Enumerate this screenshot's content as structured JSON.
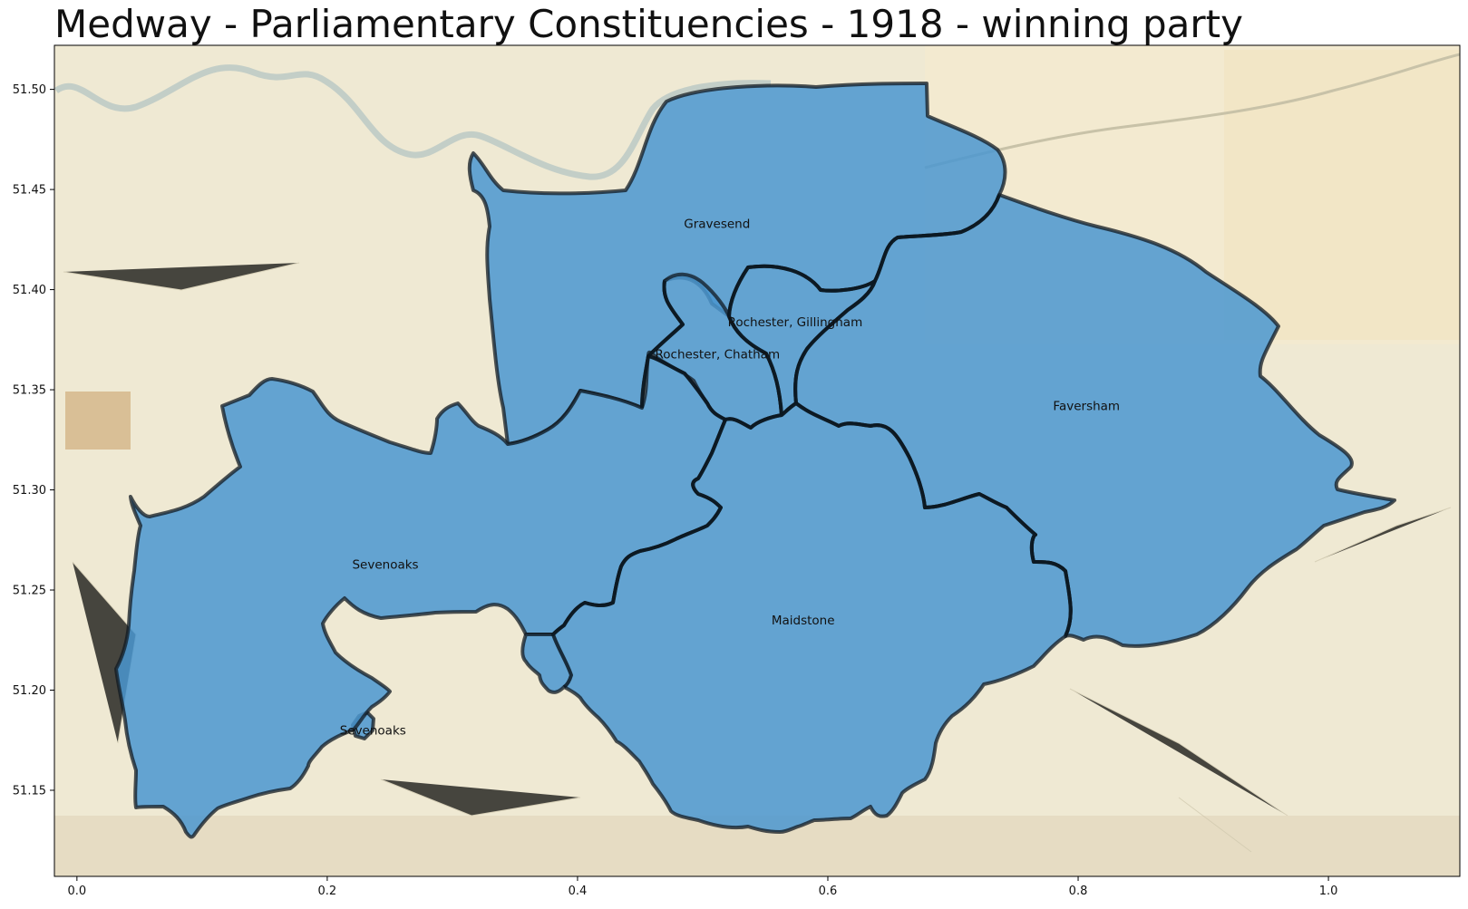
{
  "title": "Medway - Parliamentary Constituencies - 1918 - winning party",
  "colors": {
    "party_fill": "#4a97d0",
    "border": "#111a22",
    "basemap": "#efe9d3"
  },
  "x_axis": {
    "ticks": [
      {
        "value": 0.0,
        "label": "0.0"
      },
      {
        "value": 0.2,
        "label": "0.2"
      },
      {
        "value": 0.4,
        "label": "0.4"
      },
      {
        "value": 0.6,
        "label": "0.6"
      },
      {
        "value": 0.8,
        "label": "0.8"
      },
      {
        "value": 1.0,
        "label": "1.0"
      }
    ],
    "range": [
      -0.018,
      1.105
    ]
  },
  "y_axis": {
    "ticks": [
      {
        "value": 51.15,
        "label": "51.15"
      },
      {
        "value": 51.2,
        "label": "51.20"
      },
      {
        "value": 51.25,
        "label": "51.25"
      },
      {
        "value": 51.3,
        "label": "51.30"
      },
      {
        "value": 51.35,
        "label": "51.35"
      },
      {
        "value": 51.4,
        "label": "51.40"
      },
      {
        "value": 51.45,
        "label": "51.45"
      },
      {
        "value": 51.5,
        "label": "51.50"
      }
    ],
    "range": [
      51.107,
      51.522
    ]
  },
  "constituencies": [
    {
      "name": "Gravesend",
      "label_x": 0.485,
      "label_y": 51.433
    },
    {
      "name": "Rochester, Gillingham",
      "label_x": 0.52,
      "label_y": 51.384
    },
    {
      "name": "Rochester, Chatham",
      "label_x": 0.462,
      "label_y": 51.368
    },
    {
      "name": "Faversham",
      "label_x": 0.78,
      "label_y": 51.342
    },
    {
      "name": "Sevenoaks",
      "label_x": 0.22,
      "label_y": 51.263
    },
    {
      "name": "Maidstone",
      "label_x": 0.555,
      "label_y": 51.235
    },
    {
      "name": "Sevenoaks",
      "label_x": 0.21,
      "label_y": 51.18
    }
  ]
}
